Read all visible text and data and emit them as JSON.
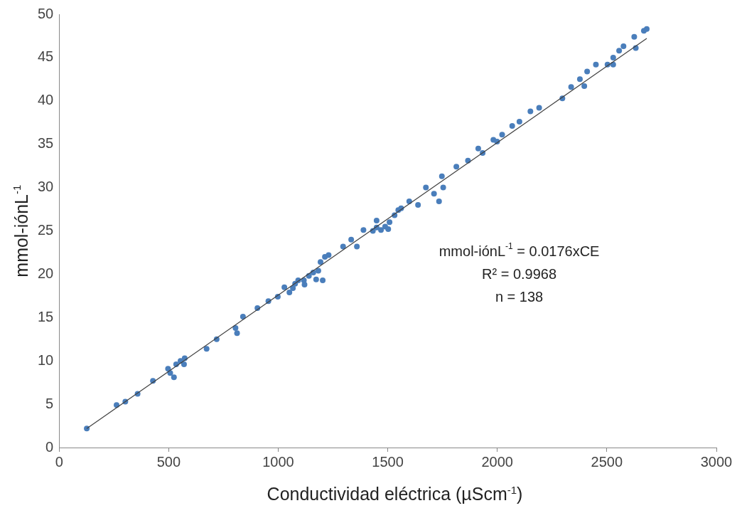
{
  "chart_data": {
    "type": "scatter",
    "xlabel": "Conductividad eléctrica (µScm$^{-1}$)",
    "ylabel": "mmol-iónL$^{-1}$",
    "xlim": [
      0,
      3000
    ],
    "xticks": [
      0,
      500,
      1000,
      1500,
      2000,
      2500,
      3000
    ],
    "ylim": [
      0,
      50
    ],
    "yticks": [
      0,
      5,
      10,
      15,
      20,
      25,
      30,
      35,
      40,
      45,
      50
    ],
    "grid": false,
    "legend": false,
    "marker": "circle",
    "annotations": [
      "mmol-iónL$^{-1}$ = 0.0176xCE",
      "R² = 0.9968",
      "n = 138"
    ],
    "series": [
      {
        "color": "#4a7ebb",
        "x": [
          126,
          262,
          302,
          358,
          428,
          497,
          507,
          524,
          534,
          554,
          573,
          570,
          673,
          719,
          805,
          812,
          839,
          905,
          955,
          998,
          1028,
          1051,
          1067,
          1077,
          1091,
          1117,
          1140,
          1120,
          1160,
          1183,
          1173,
          1193,
          1213,
          1230,
          1203,
          1296,
          1333,
          1359,
          1389,
          1432,
          1449,
          1449,
          1469,
          1488,
          1508,
          1502,
          1531,
          1548,
          1561,
          1598,
          1638,
          1674,
          1734,
          1747,
          1753,
          1711,
          1813,
          1866,
          1913,
          1933,
          1982,
          1999,
          2022,
          2068,
          2101,
          2151,
          2191,
          2297,
          2337,
          2377,
          2397,
          2410,
          2450,
          2503,
          2529,
          2529,
          2556,
          2576,
          2625,
          2632,
          2669,
          2682
        ],
        "values": [
          2.2,
          4.9,
          5.3,
          6.2,
          7.7,
          9.1,
          8.6,
          8.1,
          9.6,
          10.0,
          10.3,
          9.6,
          11.4,
          12.5,
          13.8,
          13.2,
          15.1,
          16.1,
          16.9,
          17.4,
          18.5,
          17.9,
          18.4,
          18.9,
          19.3,
          19.3,
          19.8,
          18.8,
          20.2,
          20.4,
          19.4,
          21.4,
          22.0,
          22.2,
          19.3,
          23.2,
          24.0,
          23.2,
          25.1,
          25.0,
          25.4,
          26.2,
          25.1,
          25.5,
          26.0,
          25.2,
          26.8,
          27.4,
          27.6,
          28.4,
          28.0,
          30.0,
          28.4,
          31.3,
          30.0,
          29.3,
          32.4,
          33.1,
          34.5,
          34.0,
          35.5,
          35.3,
          36.1,
          37.1,
          37.6,
          38.8,
          39.2,
          40.3,
          41.6,
          42.5,
          41.7,
          43.4,
          44.2,
          44.2,
          45.0,
          44.2,
          45.8,
          46.3,
          47.4,
          46.1,
          48.1,
          48.3
        ]
      },
      {
        "type": "line",
        "color": "#404040",
        "marker": "none",
        "line_style": "solid",
        "x": [
          126,
          2682
        ],
        "values": [
          2.2,
          47.2
        ]
      }
    ]
  }
}
